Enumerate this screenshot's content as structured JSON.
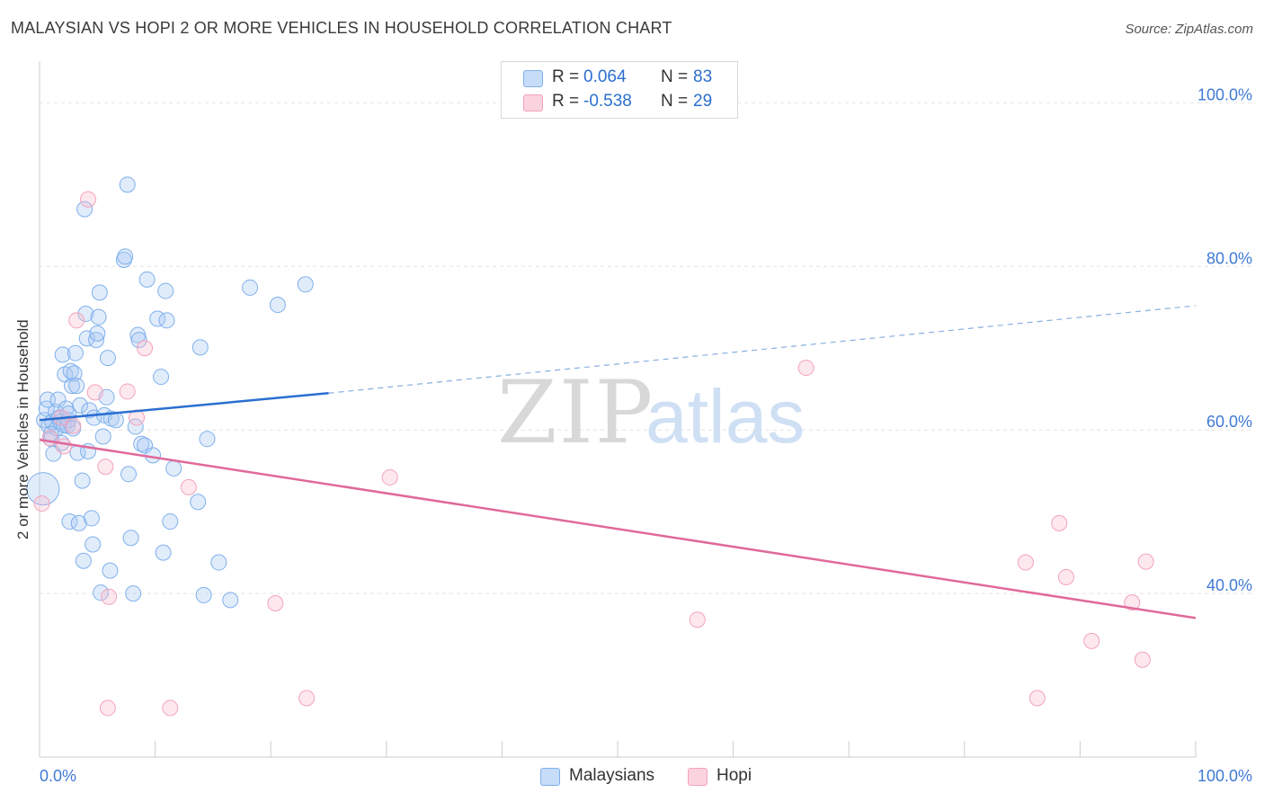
{
  "title": "MALAYSIAN VS HOPI 2 OR MORE VEHICLES IN HOUSEHOLD CORRELATION CHART",
  "source": "Source: ZipAtlas.com",
  "watermark": {
    "zip": "ZIP",
    "atlas": "atlas"
  },
  "stats": [
    {
      "r_label": "R =",
      "r_value": "0.064",
      "n_label": "N =",
      "n_value": "83",
      "color": "#a8c8f4"
    },
    {
      "r_label": "R =",
      "r_value": "-0.538",
      "n_label": "N =",
      "n_value": "29",
      "color": "#f8bccd"
    }
  ],
  "legend": [
    {
      "label": "Malaysians",
      "color": "#a8c8f4"
    },
    {
      "label": "Hopi",
      "color": "#f8bccd"
    }
  ],
  "chart_data": {
    "type": "scatter",
    "xlabel": "",
    "ylabel": "2 or more Vehicles in Household",
    "xlim": [
      0,
      100
    ],
    "ylim": [
      20,
      104
    ],
    "x_tick_labels": [
      {
        "value": 0,
        "label": "0.0%"
      },
      {
        "value": 100,
        "label": "100.0%"
      }
    ],
    "y_tick_labels": [
      {
        "value": 100,
        "label": "100.0%"
      },
      {
        "value": 80,
        "label": "80.0%"
      },
      {
        "value": 60,
        "label": "60.0%"
      },
      {
        "value": 40,
        "label": "40.0%"
      }
    ],
    "grid": true,
    "series": [
      {
        "name": "Malaysians",
        "color": "#7fb0ec",
        "line_color": "#2a6fd0",
        "trend": {
          "x0": 0,
          "y0": 61.2,
          "x1": 25,
          "y1": 64.5,
          "x_dash_end": 100,
          "y_dash_end": 75.2
        },
        "points": [
          [
            0.3,
            52.8
          ],
          [
            0.4,
            61.2
          ],
          [
            0.6,
            62.6
          ],
          [
            0.7,
            63.7
          ],
          [
            0.8,
            60.5
          ],
          [
            1.0,
            58.9
          ],
          [
            1.1,
            61.0
          ],
          [
            1.2,
            57.1
          ],
          [
            1.4,
            62.2
          ],
          [
            1.5,
            60.2
          ],
          [
            1.6,
            63.7
          ],
          [
            1.7,
            61.5
          ],
          [
            1.8,
            61.0
          ],
          [
            1.9,
            58.4
          ],
          [
            2.0,
            69.2
          ],
          [
            2.1,
            60.6
          ],
          [
            2.2,
            66.8
          ],
          [
            2.3,
            62.6
          ],
          [
            2.4,
            60.5
          ],
          [
            2.5,
            61.2
          ],
          [
            2.6,
            48.8
          ],
          [
            2.7,
            67.2
          ],
          [
            2.8,
            65.4
          ],
          [
            2.9,
            60.2
          ],
          [
            3.0,
            66.9
          ],
          [
            3.1,
            69.4
          ],
          [
            3.2,
            65.4
          ],
          [
            3.3,
            57.2
          ],
          [
            3.4,
            48.6
          ],
          [
            3.5,
            63.0
          ],
          [
            3.7,
            53.8
          ],
          [
            3.8,
            44.0
          ],
          [
            3.9,
            87.0
          ],
          [
            4.0,
            74.2
          ],
          [
            4.1,
            71.2
          ],
          [
            4.2,
            57.4
          ],
          [
            4.3,
            62.4
          ],
          [
            4.5,
            49.2
          ],
          [
            4.6,
            46.0
          ],
          [
            4.7,
            61.5
          ],
          [
            4.9,
            71.0
          ],
          [
            5.0,
            71.8
          ],
          [
            5.1,
            73.8
          ],
          [
            5.2,
            76.8
          ],
          [
            5.3,
            40.1
          ],
          [
            5.5,
            59.2
          ],
          [
            5.6,
            61.8
          ],
          [
            5.8,
            64.0
          ],
          [
            5.9,
            68.8
          ],
          [
            6.1,
            42.8
          ],
          [
            6.2,
            61.4
          ],
          [
            7.3,
            80.8
          ],
          [
            7.4,
            81.2
          ],
          [
            7.6,
            90.0
          ],
          [
            7.7,
            54.6
          ],
          [
            7.9,
            46.8
          ],
          [
            8.1,
            40.0
          ],
          [
            8.3,
            60.4
          ],
          [
            8.5,
            71.6
          ],
          [
            8.6,
            71.0
          ],
          [
            8.8,
            58.3
          ],
          [
            9.1,
            58.1
          ],
          [
            9.3,
            78.4
          ],
          [
            9.8,
            56.9
          ],
          [
            10.2,
            73.6
          ],
          [
            10.5,
            66.5
          ],
          [
            10.7,
            45.0
          ],
          [
            10.9,
            77.0
          ],
          [
            11.0,
            73.4
          ],
          [
            11.3,
            48.8
          ],
          [
            11.6,
            55.3
          ],
          [
            13.7,
            51.2
          ],
          [
            13.9,
            70.1
          ],
          [
            14.2,
            39.8
          ],
          [
            14.5,
            58.9
          ],
          [
            15.5,
            43.8
          ],
          [
            16.5,
            39.2
          ],
          [
            18.2,
            77.4
          ],
          [
            20.6,
            75.3
          ],
          [
            23.0,
            77.8
          ],
          [
            1.0,
            59.5
          ],
          [
            2.5,
            62.0
          ],
          [
            6.6,
            61.2
          ]
        ],
        "sizes": [
          36,
          0,
          0,
          0,
          0,
          0,
          0,
          0,
          0,
          0,
          0,
          0,
          0,
          0,
          0,
          0,
          0,
          0,
          0,
          0,
          0,
          0,
          0,
          0,
          0,
          0,
          0,
          0,
          0,
          0,
          0,
          0,
          0,
          0,
          0,
          0,
          0,
          0,
          0,
          0,
          0,
          0,
          0,
          0,
          0,
          0,
          0,
          0,
          0,
          0,
          0,
          0,
          0,
          0,
          0,
          0,
          0,
          0,
          0,
          0,
          0,
          0,
          0,
          0,
          0,
          0,
          0,
          0,
          0,
          0,
          0,
          0,
          0,
          0,
          0,
          0,
          0,
          0,
          0,
          0,
          0,
          0,
          0
        ]
      },
      {
        "name": "Hopi",
        "color": "#f3a3bb",
        "line_color": "#e0699a",
        "trend": {
          "x0": 0,
          "y0": 58.8,
          "x1": 100,
          "y1": 37.0
        },
        "points": [
          [
            0.2,
            51.0
          ],
          [
            0.9,
            59.0
          ],
          [
            1.9,
            61.5
          ],
          [
            2.1,
            58.0
          ],
          [
            2.9,
            60.5
          ],
          [
            3.2,
            73.4
          ],
          [
            4.2,
            88.2
          ],
          [
            4.8,
            64.6
          ],
          [
            5.7,
            55.5
          ],
          [
            6.0,
            39.6
          ],
          [
            7.6,
            64.7
          ],
          [
            8.4,
            61.5
          ],
          [
            9.1,
            70.0
          ],
          [
            11.3,
            26.0
          ],
          [
            12.9,
            53.0
          ],
          [
            20.4,
            38.8
          ],
          [
            23.1,
            27.2
          ],
          [
            30.3,
            54.2
          ],
          [
            56.9,
            36.8
          ],
          [
            66.3,
            67.6
          ],
          [
            85.3,
            43.8
          ],
          [
            86.3,
            27.2
          ],
          [
            88.2,
            48.6
          ],
          [
            88.8,
            42.0
          ],
          [
            91.0,
            34.2
          ],
          [
            94.5,
            38.9
          ],
          [
            95.4,
            31.9
          ],
          [
            95.7,
            43.9
          ],
          [
            5.9,
            26.0
          ]
        ]
      }
    ]
  }
}
